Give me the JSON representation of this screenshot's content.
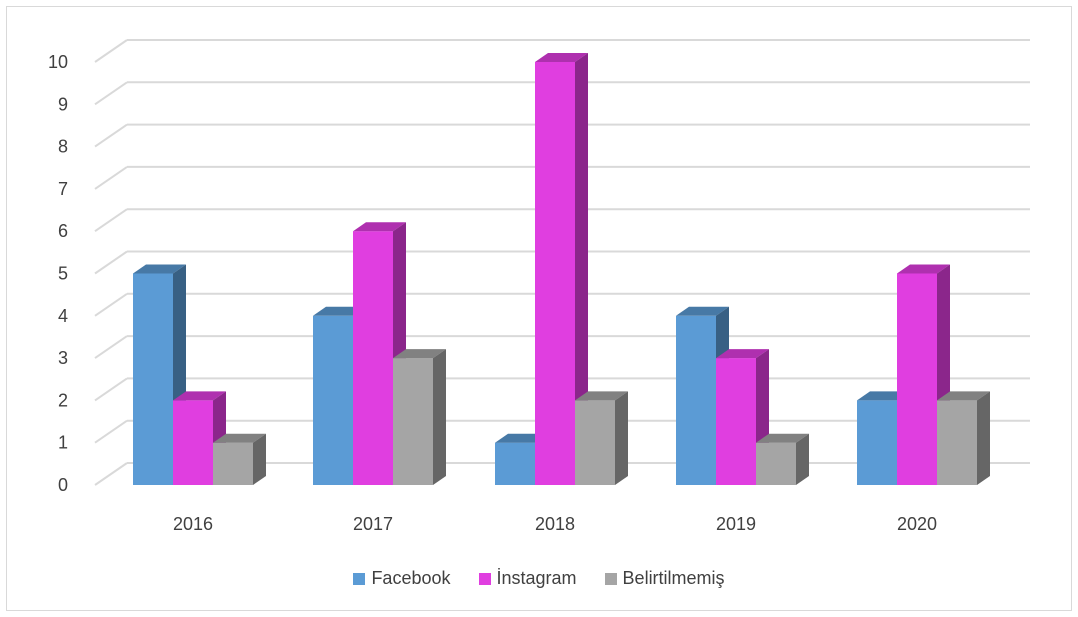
{
  "chart_data": {
    "type": "bar",
    "categories": [
      "2016",
      "2017",
      "2018",
      "2019",
      "2020"
    ],
    "series": [
      {
        "name": "Facebook",
        "values": [
          5,
          4,
          1,
          4,
          2
        ],
        "color": "#5b9bd5"
      },
      {
        "name": "İnstagram",
        "values": [
          2,
          6,
          10,
          3,
          5
        ],
        "color": "#e03ee0"
      },
      {
        "name": "Belirtilmemiş",
        "values": [
          1,
          3,
          2,
          1,
          2
        ],
        "color": "#a5a5a5"
      }
    ],
    "y_ticks": [
      "0",
      "1",
      "2",
      "3",
      "4",
      "5",
      "6",
      "7",
      "8",
      "9",
      "10"
    ],
    "ylim": [
      0,
      10
    ],
    "grid": true,
    "legend_position": "bottom",
    "title": "",
    "xlabel": "",
    "ylabel": ""
  }
}
